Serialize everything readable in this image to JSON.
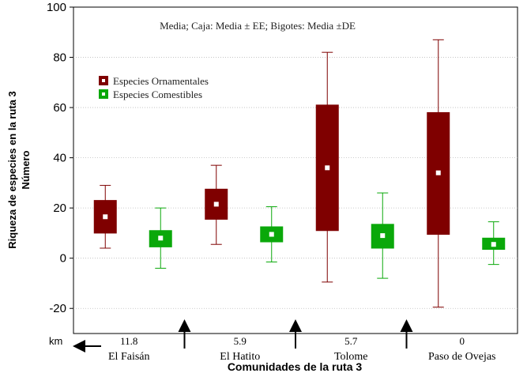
{
  "chart_data": {
    "type": "boxplot",
    "annotation": "Media; Caja: Media ± EE; Bigotes: Media ±DE",
    "ylabel_line1": "Riqueza de especies en la ruta 3",
    "ylabel_line2": "Número",
    "xlabel": "Comunidades de la ruta 3",
    "ylim": [
      -30,
      100
    ],
    "yticks": [
      -20,
      0,
      20,
      40,
      60,
      80,
      100
    ],
    "grid": "horizontal dotted",
    "legend_position": "top-left",
    "km_label": "km",
    "categories": [
      {
        "name": "El Faisán",
        "km": "11.8"
      },
      {
        "name": "El Hatito",
        "km": "5.9"
      },
      {
        "name": "Tolome",
        "km": "5.7"
      },
      {
        "name": "Paso de Ovejas",
        "km": "0"
      }
    ],
    "series": [
      {
        "name": "Especies Ornamentales",
        "color": "#7f0000",
        "boxes": [
          {
            "mean": 16.5,
            "se_low": 10,
            "se_high": 23,
            "sd_low": 4,
            "sd_high": 29
          },
          {
            "mean": 21.5,
            "se_low": 15.5,
            "se_high": 27.5,
            "sd_low": 5.5,
            "sd_high": 37
          },
          {
            "mean": 36,
            "se_low": 11,
            "se_high": 61,
            "sd_low": -9.5,
            "sd_high": 82
          },
          {
            "mean": 34,
            "se_low": 9.5,
            "se_high": 58,
            "sd_low": -19.5,
            "sd_high": 87
          }
        ]
      },
      {
        "name": "Especies Comestibles",
        "color": "#0aa80a",
        "boxes": [
          {
            "mean": 8,
            "se_low": 4.5,
            "se_high": 11,
            "sd_low": -4,
            "sd_high": 20
          },
          {
            "mean": 9.5,
            "se_low": 6.5,
            "se_high": 12.5,
            "sd_low": -1.5,
            "sd_high": 20.5
          },
          {
            "mean": 9,
            "se_low": 4,
            "se_high": 13.5,
            "sd_low": -8,
            "sd_high": 26
          },
          {
            "mean": 5.5,
            "se_low": 3.5,
            "se_high": 8,
            "sd_low": -2.5,
            "sd_high": 14.5
          }
        ]
      }
    ]
  }
}
